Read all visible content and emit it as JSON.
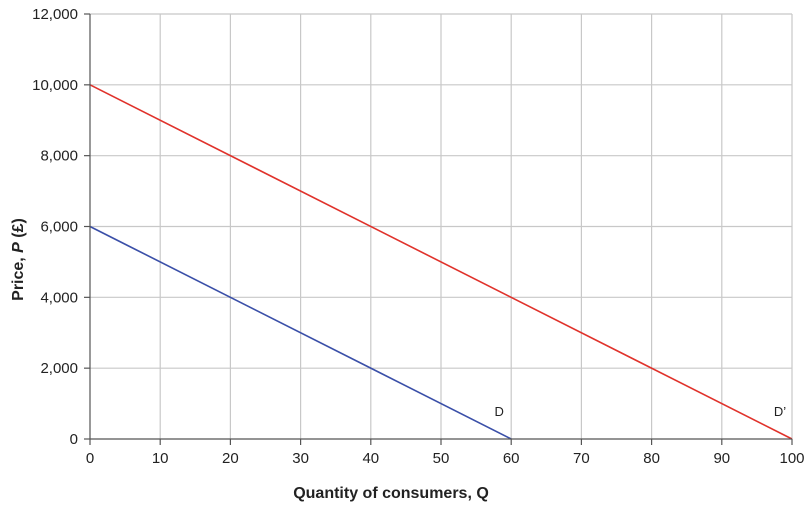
{
  "chart_data": {
    "type": "line",
    "xlabel": "Quantity of consumers, Q",
    "ylabel_parts": [
      "Price, ",
      "P",
      " (£)"
    ],
    "xlim": [
      0,
      100
    ],
    "ylim": [
      0,
      12000
    ],
    "x_ticks": [
      0,
      10,
      20,
      30,
      40,
      50,
      60,
      70,
      80,
      90,
      100
    ],
    "y_ticks": [
      0,
      2000,
      4000,
      6000,
      8000,
      10000,
      12000
    ],
    "x_tick_labels": [
      "0",
      "10",
      "20",
      "30",
      "40",
      "50",
      "60",
      "70",
      "80",
      "90",
      "100"
    ],
    "y_tick_labels": [
      "0",
      "2,000",
      "4,000",
      "6,000",
      "8,000",
      "10,000",
      "12,000"
    ],
    "grid": true,
    "series": [
      {
        "name": "D",
        "color": "#3a4fa8",
        "x": [
          0,
          60
        ],
        "y": [
          6000,
          0
        ]
      },
      {
        "name": "D’",
        "color": "#e0322b",
        "x": [
          0,
          100
        ],
        "y": [
          10000,
          0
        ]
      }
    ]
  }
}
